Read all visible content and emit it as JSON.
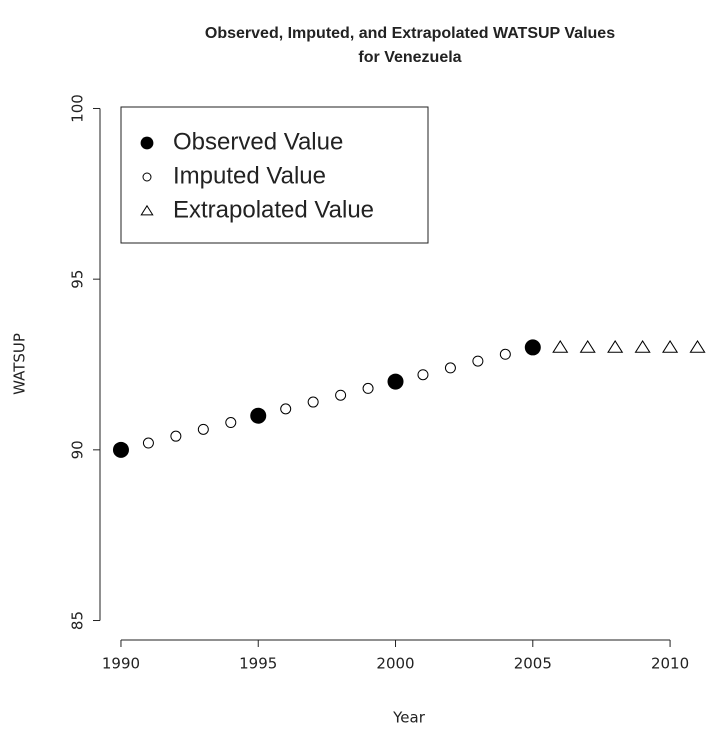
{
  "chart_data": {
    "type": "scatter",
    "title": [
      "Observed, Imputed, and Extrapolated WATSUP Values",
      "for Venezuela"
    ],
    "x_label": "Year",
    "y_label": "WATSUP",
    "xlim": [
      1989.2,
      2011.6
    ],
    "xticks": [
      1990,
      1995,
      2000,
      2005,
      2010
    ],
    "ylim": [
      84.4,
      100.6
    ],
    "yticks": [
      85,
      90,
      95,
      100
    ],
    "legend": "top-left",
    "series": [
      {
        "name": "Observed Value",
        "marker": "filled-circle",
        "color": "#000000",
        "x": [
          1990,
          1995,
          2000,
          2005
        ],
        "values": [
          90,
          91,
          92,
          93
        ]
      },
      {
        "name": "Imputed Value",
        "marker": "open-circle",
        "color": "#000000",
        "x": [
          1991,
          1992,
          1993,
          1994,
          1996,
          1997,
          1998,
          1999,
          2001,
          2002,
          2003,
          2004
        ],
        "values": [
          90.2,
          90.4,
          90.6,
          90.8,
          91.2,
          91.4,
          91.6,
          91.8,
          92.2,
          92.4,
          92.6,
          92.8
        ]
      },
      {
        "name": "Extrapolated Value",
        "marker": "open-triangle",
        "color": "#000000",
        "x": [
          2006,
          2007,
          2008,
          2009,
          2010,
          2011
        ],
        "values": [
          93,
          93,
          93,
          93,
          93,
          93
        ]
      }
    ]
  }
}
